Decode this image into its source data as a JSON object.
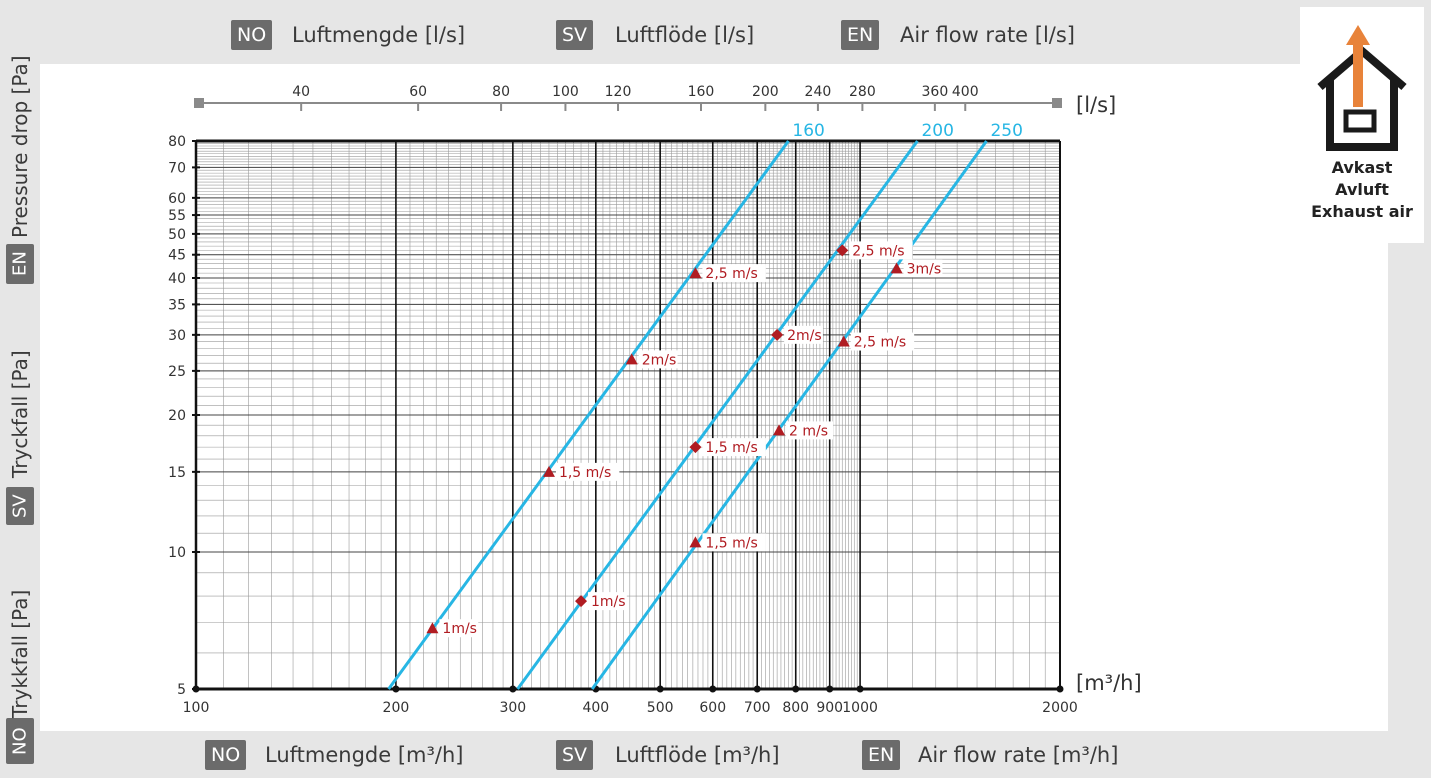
{
  "top_labels": [
    {
      "lang": "NO",
      "text": "Luftmengde [l/s]"
    },
    {
      "lang": "SV",
      "text": "Luftflöde [l/s]"
    },
    {
      "lang": "EN",
      "text": "Air flow rate [l/s]"
    }
  ],
  "bottom_labels": [
    {
      "lang": "NO",
      "text": "Luftmengde [m³/h]"
    },
    {
      "lang": "SV",
      "text": "Luftflöde [m³/h]"
    },
    {
      "lang": "EN",
      "text": "Air flow rate [m³/h]"
    }
  ],
  "side_labels": [
    {
      "lang": "EN",
      "text": "Pressure drop [Pa]"
    },
    {
      "lang": "SV",
      "text": "Tryckfall [Pa]"
    },
    {
      "lang": "NO",
      "text": "Trykkfall [Pa]"
    }
  ],
  "house": {
    "lines": [
      "Avkast",
      "Avluft",
      "Exhaust air"
    ],
    "arrow_color": "#e8833a"
  },
  "chart_data": {
    "type": "line",
    "x_scale": "log",
    "y_scale": "log",
    "xlim": [
      100,
      2000
    ],
    "ylim": [
      5,
      80
    ],
    "x_unit": "[m³/h]",
    "y_unit": "",
    "top_axis_unit": "[l/s]",
    "x_ticks": [
      "100",
      "200",
      "300",
      "400",
      "500",
      "600",
      "700",
      "800",
      "900",
      "1000",
      "2000"
    ],
    "x_tick_values": [
      100,
      200,
      300,
      400,
      500,
      600,
      700,
      800,
      900,
      1000,
      2000
    ],
    "y_ticks": [
      "5",
      "10",
      "15",
      "20",
      "25",
      "30",
      "35",
      "40",
      "45",
      "50",
      "55",
      "60",
      "70",
      "80"
    ],
    "y_tick_values": [
      5,
      10,
      15,
      20,
      25,
      30,
      35,
      40,
      45,
      50,
      55,
      60,
      70,
      80
    ],
    "top_ticks": [
      "40",
      "60",
      "80",
      "100",
      "120",
      "160",
      "200",
      "240",
      "280",
      "360",
      "400"
    ],
    "top_tick_values": [
      40,
      60,
      80,
      100,
      120,
      160,
      200,
      240,
      280,
      360,
      400
    ],
    "grid": true,
    "line_color": "#27b6e4",
    "marker_color": "#b01c22",
    "series": [
      {
        "name": "160",
        "line": [
          [
            195,
            5
          ],
          [
            780,
            80
          ]
        ],
        "markers": [
          {
            "x": 227,
            "y": 6.8,
            "label": "1m/s",
            "shape": "triangle"
          },
          {
            "x": 340,
            "y": 15,
            "label": "1,5 m/s",
            "shape": "triangle"
          },
          {
            "x": 453,
            "y": 26.5,
            "label": "2m/s",
            "shape": "triangle"
          },
          {
            "x": 565,
            "y": 41,
            "label": "2,5 m/s",
            "shape": "triangle"
          }
        ]
      },
      {
        "name": "200",
        "line": [
          [
            305,
            5
          ],
          [
            1220,
            80
          ]
        ],
        "markers": [
          {
            "x": 380,
            "y": 7.8,
            "label": "1m/s",
            "shape": "diamond"
          },
          {
            "x": 565,
            "y": 17,
            "label": "1,5 m/s",
            "shape": "diamond"
          },
          {
            "x": 750,
            "y": 30,
            "label": "2m/s",
            "shape": "diamond"
          },
          {
            "x": 940,
            "y": 46,
            "label": "2,5 m/s",
            "shape": "diamond"
          }
        ]
      },
      {
        "name": "250",
        "line": [
          [
            395,
            5
          ],
          [
            1550,
            80
          ]
        ],
        "markers": [
          {
            "x": 565,
            "y": 10.5,
            "label": "1,5 m/s",
            "shape": "triangle"
          },
          {
            "x": 755,
            "y": 18.5,
            "label": "2 m/s",
            "shape": "triangle"
          },
          {
            "x": 945,
            "y": 29,
            "label": "2,5 m/s",
            "shape": "triangle"
          },
          {
            "x": 1135,
            "y": 42,
            "label": "3m/s",
            "shape": "triangle"
          }
        ]
      }
    ]
  }
}
